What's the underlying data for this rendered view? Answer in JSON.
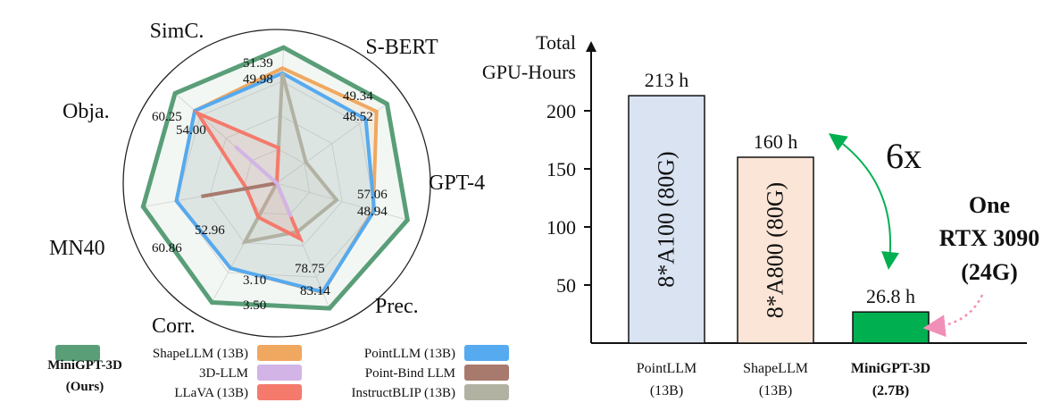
{
  "chart_data": [
    {
      "type": "radar",
      "axes": [
        "SimC.",
        "S-BERT",
        "GPT-4",
        "Prec.",
        "Corr.",
        "MN40",
        "Obja."
      ],
      "series": [
        {
          "name": "MiniGPT-3D (Ours)",
          "name_line1": "MiniGPT-3D",
          "name_line2": "(Ours)",
          "color": "#5a9e78",
          "r": [
            1.0,
            1.0,
            1.0,
            1.0,
            1.0,
            1.0,
            1.0
          ]
        },
        {
          "name": "ShapeLLM (13B)",
          "color": "#f0a860",
          "r": [
            0.848,
            0.905,
            0.738,
            0.873,
            0.713,
            0.751,
            0.806
          ]
        },
        {
          "name": "PointLLM (13B)",
          "color": "#55aaf0",
          "r": [
            0.811,
            0.807,
            0.746,
            0.869,
            0.713,
            0.751,
            0.806
          ]
        },
        {
          "name": "3D-LLM",
          "color": "#d2b4e6",
          "r": [
            0,
            0,
            0,
            0.27,
            0,
            0,
            0.41
          ]
        },
        {
          "name": "Point-Bind LLM",
          "color": "#a87a6e",
          "r": [
            0,
            0,
            0,
            0,
            0,
            0.565,
            0
          ]
        },
        {
          "name": "LLaVA (13B)",
          "color": "#f47a6c",
          "r": [
            0.26,
            0,
            0,
            0.444,
            0.286,
            0.227,
            0.777
          ]
        },
        {
          "name": "InstructBLIP (13B)",
          "color": "#b2b2a3",
          "r": [
            0.811,
            0.264,
            0.458,
            0.389,
            0.493,
            0,
            0
          ]
        }
      ],
      "value_labels": [
        "51.39",
        "49.98",
        "49.34",
        "48.52",
        "57.06",
        "48.94",
        "78.75",
        "83.14",
        "3.10",
        "3.50",
        "52.96",
        "60.86",
        "54.00",
        "60.25"
      ]
    },
    {
      "type": "bar",
      "ylabel_line1": "Total",
      "ylabel_line2": "GPU-Hours",
      "ylim": [
        0,
        250
      ],
      "yticks": [
        50,
        100,
        150,
        200
      ],
      "categories": [
        {
          "line1": "PointLLM",
          "line2": "(13B)",
          "bold": false
        },
        {
          "line1": "ShapeLLM",
          "line2": "(13B)",
          "bold": false
        },
        {
          "line1": "MiniGPT-3D",
          "line2": "(2.7B)",
          "bold": true
        }
      ],
      "values": [
        213,
        160,
        26.8
      ],
      "value_labels": [
        "213 h",
        "160 h",
        "26.8 h"
      ],
      "bar_texts": [
        "8*A100 (80G)",
        "8*A800 (80G)",
        ""
      ],
      "bar_colors": [
        "#dae3f2",
        "#fbe5d6",
        "#00b050"
      ],
      "bar_text_colors": [
        "#1f3864",
        "#843c0c",
        ""
      ],
      "annotation_ratio": "6x",
      "annotation_ratio_color": "#00b050",
      "annotation_gpu": [
        "One",
        "RTX 3090",
        "(24G)"
      ],
      "annotation_gpu_color": "#ff0000"
    }
  ]
}
